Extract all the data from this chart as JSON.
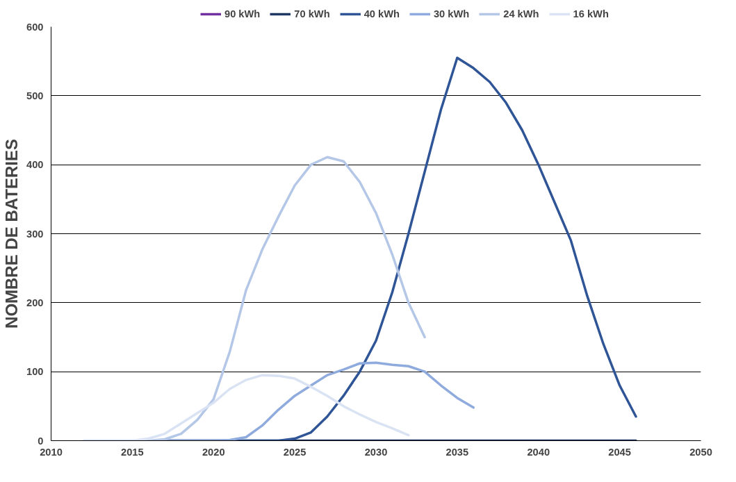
{
  "chart_data": {
    "type": "line",
    "ylabel": "NOMBRE DE BATERIES",
    "x": [
      2012,
      2013,
      2014,
      2015,
      2016,
      2017,
      2018,
      2019,
      2020,
      2021,
      2022,
      2023,
      2024,
      2025,
      2026,
      2027,
      2028,
      2029,
      2030,
      2031,
      2032,
      2033,
      2034,
      2035,
      2036,
      2037,
      2038,
      2039,
      2040,
      2041,
      2042,
      2043,
      2044,
      2045,
      2046
    ],
    "series": [
      {
        "name": "90 kWh",
        "color": "#7030a0",
        "values": [
          null,
          null,
          null,
          null,
          null,
          null,
          null,
          null,
          null,
          null,
          null,
          null,
          null,
          null,
          null,
          null,
          null,
          null,
          null,
          null,
          null,
          null,
          null,
          null,
          null,
          null,
          null,
          null,
          null,
          null,
          null,
          null,
          null,
          null,
          null
        ]
      },
      {
        "name": "70 kWh",
        "color": "#203864",
        "values": [
          null,
          null,
          null,
          null,
          null,
          0,
          0,
          0,
          0,
          0,
          0,
          0,
          0,
          0,
          0,
          0,
          0,
          0,
          0,
          0,
          0,
          0,
          0,
          0,
          0,
          0,
          0,
          0,
          0,
          0,
          0,
          0,
          0,
          0,
          0
        ]
      },
      {
        "name": "40 kWh",
        "color": "#2f5597",
        "values": [
          null,
          null,
          null,
          null,
          null,
          0,
          0,
          0,
          0,
          0,
          0,
          0,
          0,
          3,
          12,
          35,
          65,
          100,
          145,
          215,
          300,
          390,
          480,
          555,
          540,
          520,
          490,
          450,
          400,
          345,
          290,
          210,
          140,
          80,
          35
        ]
      },
      {
        "name": "30 kWh",
        "color": "#8faadc",
        "values": [
          null,
          null,
          null,
          null,
          null,
          0,
          0,
          0,
          0,
          1,
          5,
          22,
          45,
          65,
          80,
          95,
          103,
          112,
          113,
          110,
          108,
          100,
          80,
          62,
          48,
          null,
          null,
          null,
          null,
          null,
          null,
          null,
          null,
          null,
          null
        ]
      },
      {
        "name": "24 kWh",
        "color": "#b4c7e7",
        "values": [
          0,
          0,
          0,
          0,
          0,
          2,
          10,
          30,
          60,
          129,
          218,
          277,
          325,
          370,
          400,
          411,
          405,
          375,
          330,
          270,
          200,
          150,
          null,
          null,
          null,
          null,
          null,
          null,
          null,
          null,
          null,
          null,
          null,
          null,
          null
        ]
      },
      {
        "name": "16 kWh",
        "color": "#dae3f3",
        "values": [
          0,
          0,
          0,
          0,
          3,
          10,
          25,
          40,
          55,
          75,
          88,
          95,
          94,
          90,
          78,
          65,
          50,
          38,
          27,
          18,
          8,
          null,
          null,
          null,
          null,
          null,
          null,
          null,
          null,
          null,
          null,
          null,
          null,
          null,
          null
        ]
      }
    ],
    "xlim": [
      2010,
      2050
    ],
    "xticks": [
      2010,
      2015,
      2020,
      2025,
      2030,
      2035,
      2040,
      2045,
      2050
    ],
    "ylim": [
      0,
      600
    ],
    "yticks": [
      0,
      100,
      200,
      300,
      400,
      500,
      600
    ],
    "grid": "y",
    "legend": "top",
    "line_style": "solid",
    "marker": "none"
  }
}
